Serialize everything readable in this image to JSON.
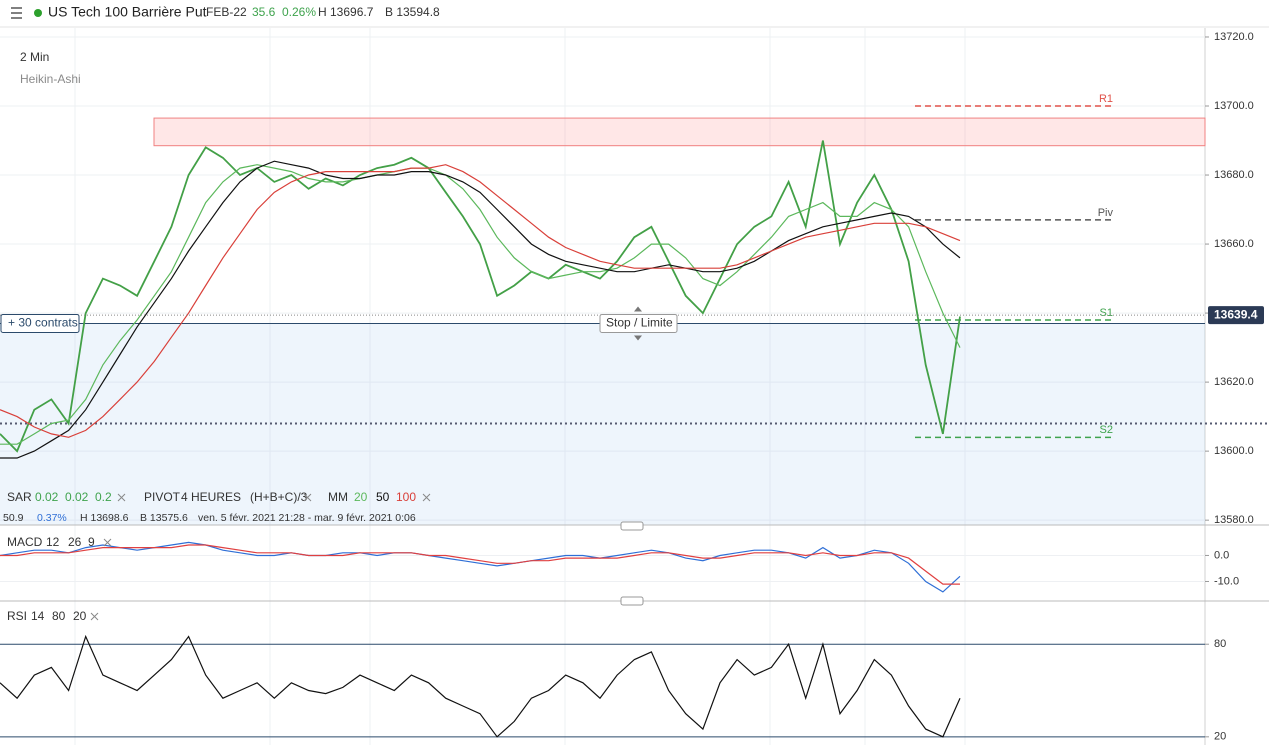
{
  "header": {
    "title": "US Tech 100 Barrière Put",
    "contract": "FEB-22",
    "change": "35.6",
    "change_pct": "0.26%",
    "high": "H 13696.7",
    "low": "B 13594.8"
  },
  "timeframe": "2 Min",
  "overlays": {
    "sar": [
      "SAR",
      "0.02",
      "0.02",
      "0.2"
    ],
    "pivot": [
      "PIVOT",
      "4 HEURES",
      "(H+B+C)/3"
    ],
    "mm": "MM"
  },
  "info": [
    "50.9",
    "0.37%",
    "H 13698.6",
    "B 13575.6",
    "ven. 5 févr. 2021 21:28 - mar. 9 févr. 2021 0:06"
  ],
  "chart_data": [
    {
      "type": "line",
      "ylim": [
        13578.6,
        13722.6
      ],
      "yticks": [
        {
          "value": 13580,
          "label": "13580.0"
        },
        {
          "value": 13600,
          "label": "13600.0"
        },
        {
          "value": 13620,
          "label": "13620.0"
        },
        {
          "value": 13640,
          "label": "13640.0"
        },
        {
          "value": 13660,
          "label": "13660.0"
        },
        {
          "value": 13680,
          "label": "13680.0"
        },
        {
          "value": 13700,
          "label": "13700.0"
        },
        {
          "value": 13720,
          "label": "13720.0"
        }
      ],
      "grid": true,
      "series": [
        {
          "name": "Heikin-Ashi",
          "color": "#43a047",
          "values": [
            13605,
            13600,
            13612,
            13615,
            13608,
            13640,
            13650,
            13648,
            13645,
            13655,
            13665,
            13680,
            13688,
            13685,
            13680,
            13682,
            13678,
            13680,
            13676,
            13679,
            13677,
            13680,
            13682,
            13683,
            13685,
            13682,
            13675,
            13668,
            13660,
            13645,
            13648,
            13652,
            13650,
            13654,
            13652,
            13650,
            13655,
            13662,
            13665,
            13655,
            13645,
            13640,
            13650,
            13660,
            13665,
            13668,
            13678,
            13665,
            13690,
            13660,
            13672,
            13680,
            13670,
            13655,
            13625,
            13605,
            13639
          ]
        },
        {
          "name": "20",
          "color": "#5cb85c",
          "values": [
            13602,
            13602,
            13605,
            13608,
            13609,
            13615,
            13625,
            13632,
            13638,
            13645,
            13652,
            13662,
            13672,
            13678,
            13682,
            13683,
            13682,
            13681,
            13679,
            13678,
            13678,
            13679,
            13680,
            13681,
            13682,
            13682,
            13680,
            13676,
            13670,
            13662,
            13656,
            13652,
            13650,
            13651,
            13652,
            13652,
            13653,
            13656,
            13660,
            13660,
            13656,
            13650,
            13648,
            13652,
            13657,
            13662,
            13668,
            13670,
            13672,
            13668,
            13668,
            13672,
            13670,
            13665,
            13652,
            13640,
            13630
          ]
        },
        {
          "name": "50",
          "color": "#111111",
          "values": [
            13598,
            13598,
            13600,
            13603,
            13606,
            13612,
            13620,
            13628,
            13636,
            13643,
            13650,
            13658,
            13665,
            13672,
            13678,
            13682,
            13684,
            13683,
            13682,
            13680,
            13679,
            13679,
            13680,
            13680,
            13681,
            13681,
            13680,
            13678,
            13675,
            13670,
            13665,
            13660,
            13657,
            13655,
            13654,
            13653,
            13652,
            13652,
            13653,
            13654,
            13653,
            13652,
            13652,
            13653,
            13655,
            13658,
            13661,
            13663,
            13665,
            13666,
            13667,
            13668,
            13669,
            13668,
            13665,
            13660,
            13656
          ]
        },
        {
          "name": "100",
          "color": "#d9403a",
          "values": [
            13612,
            13610,
            13607,
            13605,
            13604,
            13606,
            13610,
            13615,
            13620,
            13626,
            13633,
            13640,
            13648,
            13656,
            13663,
            13670,
            13675,
            13678,
            13680,
            13681,
            13681,
            13681,
            13681,
            13681,
            13682,
            13682,
            13683,
            13681,
            13678,
            13674,
            13670,
            13666,
            13662,
            13659,
            13657,
            13655,
            13654,
            13653,
            13653,
            13653,
            13653,
            13653,
            13653,
            13654,
            13656,
            13658,
            13660,
            13662,
            13663,
            13664,
            13665,
            13666,
            13666,
            13666,
            13665,
            13663,
            13661
          ]
        }
      ],
      "levels": [
        {
          "label": "R1",
          "value": 13700,
          "color": "#e0524a"
        },
        {
          "label": "Piv",
          "value": 13667,
          "color": "#555555"
        },
        {
          "label": "S1",
          "value": 13638,
          "color": "#3fa34d"
        },
        {
          "label": "S2",
          "value": 13604,
          "color": "#3fa34d"
        }
      ],
      "zone": [
        13688.5,
        13696.5
      ],
      "current_price": 13639.4,
      "order_line": 13608,
      "position": {
        "label": "+ 30 contrats",
        "value": 13637
      },
      "stop_label": "Stop / Limite"
    },
    {
      "type": "line",
      "title": "MACD",
      "params": [
        "12",
        "26"
      ],
      "ylim": [
        -17.5,
        11.7
      ],
      "yticks": [
        {
          "value": 0,
          "label": "0.0"
        },
        {
          "value": -10,
          "label": "-10.0"
        }
      ],
      "series": [
        {
          "name": "MACD",
          "color": "#2f6fd6",
          "values": [
            0,
            1,
            2,
            2,
            1,
            3,
            4,
            3,
            2,
            3,
            4,
            5,
            4,
            2,
            1,
            0,
            0,
            1,
            0,
            0,
            1,
            1,
            0,
            1,
            1,
            0,
            -1,
            -2,
            -3,
            -4,
            -3,
            -2,
            -1,
            0,
            0,
            -1,
            0,
            1,
            2,
            1,
            -1,
            -2,
            0,
            1,
            2,
            2,
            1,
            -1,
            3,
            -1,
            0,
            2,
            1,
            -3,
            -10,
            -14,
            -8
          ]
        },
        {
          "name": "9",
          "color": "#e04040",
          "values": [
            0,
            0,
            1,
            1,
            1,
            2,
            3,
            3,
            3,
            3,
            3,
            4,
            4,
            3,
            2,
            1,
            1,
            1,
            0,
            0,
            0,
            1,
            1,
            1,
            1,
            0,
            0,
            -1,
            -2,
            -3,
            -3,
            -2,
            -2,
            -1,
            -1,
            -1,
            -1,
            0,
            1,
            1,
            0,
            -1,
            -1,
            0,
            1,
            1,
            1,
            0,
            1,
            0,
            0,
            1,
            1,
            -1,
            -6,
            -11,
            -11
          ]
        }
      ]
    },
    {
      "type": "line",
      "title": "RSI",
      "params": [
        "14",
        "80",
        "20"
      ],
      "ylim": [
        14.7,
        108
      ],
      "yticks": [
        80,
        20
      ],
      "series": [
        {
          "name": "RSI",
          "color": "#111111",
          "values": [
            55,
            45,
            60,
            65,
            50,
            85,
            60,
            55,
            50,
            60,
            70,
            85,
            60,
            45,
            50,
            55,
            45,
            55,
            50,
            48,
            52,
            60,
            55,
            50,
            60,
            55,
            45,
            40,
            35,
            20,
            30,
            45,
            50,
            60,
            55,
            45,
            60,
            70,
            75,
            50,
            35,
            25,
            55,
            70,
            60,
            65,
            80,
            45,
            80,
            35,
            50,
            70,
            60,
            40,
            25,
            20,
            45
          ]
        }
      ]
    }
  ]
}
